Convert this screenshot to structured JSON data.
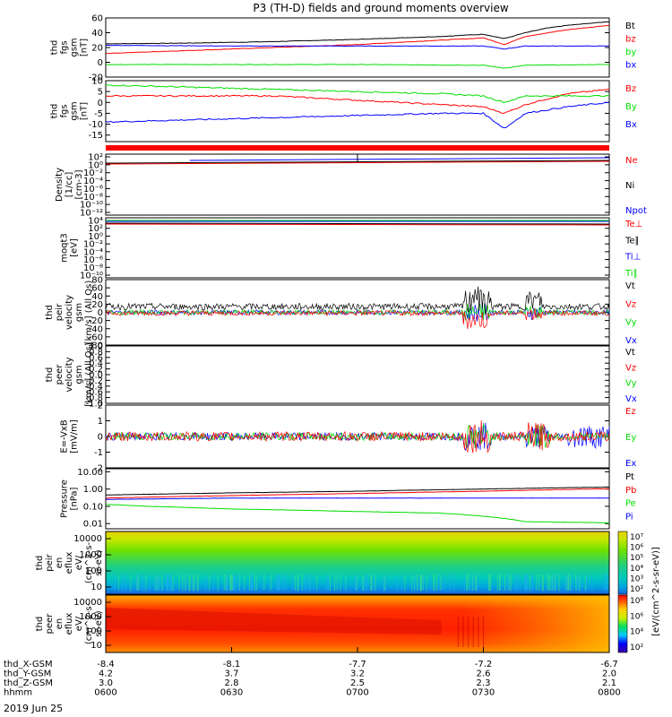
{
  "title": "P3 (TH-D) fields and ground moments overview",
  "date_label": "2019 Jun 25",
  "colors": {
    "black": "#000000",
    "red": "#ff0000",
    "green": "#00dd00",
    "blue": "#0000ff"
  },
  "chart_data": [
    {
      "id": "fgs",
      "type": "line",
      "ylabel": [
        "thd",
        "fgs",
        "gsm",
        "[nT]"
      ],
      "ylim": [
        -20,
        60
      ],
      "ticks": [
        "60",
        "40",
        "20",
        "0",
        "-20"
      ],
      "tick_values": [
        60,
        40,
        20,
        0,
        -20
      ],
      "series": [
        {
          "name": "Bt",
          "color": "black",
          "x": [
            0,
            20,
            40,
            60,
            80,
            90,
            95,
            100,
            105,
            110,
            120
          ],
          "y": [
            25,
            26,
            28,
            31,
            35,
            38,
            32,
            40,
            46,
            50,
            55
          ]
        },
        {
          "name": "bz",
          "color": "red",
          "x": [
            0,
            20,
            40,
            60,
            80,
            90,
            95,
            100,
            110,
            120
          ],
          "y": [
            12,
            16,
            20,
            24,
            30,
            33,
            24,
            35,
            44,
            50
          ]
        },
        {
          "name": "by",
          "color": "green",
          "x": [
            0,
            30,
            60,
            90,
            95,
            100,
            120
          ],
          "y": [
            -3,
            -3,
            -3,
            -4,
            -8,
            -4,
            -3
          ]
        },
        {
          "name": "bx",
          "color": "blue",
          "x": [
            0,
            30,
            60,
            90,
            95,
            100,
            120
          ],
          "y": [
            23,
            22,
            22,
            22,
            18,
            22,
            22
          ]
        }
      ]
    },
    {
      "id": "gse",
      "type": "line",
      "ylabel": [
        "thd",
        "fgs",
        "gsm",
        "[nT]"
      ],
      "ylim": [
        -18,
        10
      ],
      "ticks": [
        "10",
        "5",
        "0",
        "-5",
        "-10",
        "-15"
      ],
      "tick_values": [
        10,
        5,
        0,
        -5,
        -10,
        -15
      ],
      "series": [
        {
          "name": "Bz",
          "color": "red",
          "x": [
            0,
            20,
            40,
            60,
            80,
            90,
            95,
            100,
            110,
            120
          ],
          "y": [
            3,
            3,
            3,
            1,
            -1,
            -2,
            -5,
            -1,
            4,
            6
          ]
        },
        {
          "name": "By",
          "color": "green",
          "x": [
            0,
            20,
            40,
            60,
            80,
            90,
            95,
            100,
            120
          ],
          "y": [
            8,
            7,
            6,
            5,
            4,
            3,
            0,
            3,
            3
          ]
        },
        {
          "name": "Bx",
          "color": "blue",
          "x": [
            0,
            20,
            40,
            60,
            80,
            90,
            95,
            100,
            110,
            120
          ],
          "y": [
            -9,
            -8,
            -7,
            -6,
            -5,
            -5,
            -12,
            -5,
            -2,
            0
          ]
        }
      ]
    },
    {
      "id": "density",
      "type": "line",
      "ylabel": [
        "Density",
        "[1/cc]",
        "[cm-3]"
      ],
      "ticks": [
        "10²",
        "10⁰",
        "10⁻²",
        "10⁻⁴",
        "10⁻⁶",
        "10⁻⁸",
        "10⁻¹⁰",
        "10⁻¹²"
      ],
      "legend": [
        "Ne",
        "Ni",
        "Npot"
      ],
      "legend_colors": [
        "red",
        "black",
        "blue"
      ]
    },
    {
      "id": "temp",
      "type": "line",
      "ylabel": [
        "moqt3",
        "[eV]"
      ],
      "ticks": [
        "10⁴",
        "10²",
        "10⁰",
        "10⁻²",
        "10⁻⁴",
        "10⁻⁶",
        "10⁻⁸",
        "10⁻¹⁰"
      ],
      "legend": [
        "Te⊥",
        "Te∥",
        "Ti⊥",
        "Ti∥"
      ],
      "legend_colors": [
        "red",
        "black",
        "blue",
        "green"
      ]
    },
    {
      "id": "ivel",
      "type": "line",
      "ylabel": [
        "thd",
        "peir",
        "velocity",
        "gsm",
        "[km/s] (All Qs)"
      ],
      "ylim": [
        -80,
        80
      ],
      "ticks": [
        "80",
        "60",
        "40",
        "20",
        "0",
        "-20",
        "-40",
        "-60",
        "-80"
      ],
      "tick_values": [
        80,
        60,
        40,
        20,
        0,
        -20,
        -40,
        -60,
        -80
      ],
      "legend": [
        "Vt",
        "Vz",
        "Vy",
        "Vx"
      ],
      "legend_colors": [
        "black",
        "red",
        "green",
        "blue"
      ]
    },
    {
      "id": "evel",
      "type": "line",
      "ylabel": [
        "thd",
        "peer",
        "velocity",
        "gsm",
        "[km/s] (All Qs)"
      ],
      "ylim": [
        -1,
        1
      ],
      "ticks": [
        "1.0",
        "0.8",
        "0.6",
        "0.4",
        "0.2",
        "0.0",
        "-0.2",
        "-0.4",
        "-0.6",
        "-0.8",
        "-1.0"
      ],
      "tick_values": [
        1,
        0.8,
        0.6,
        0.4,
        0.2,
        0,
        -0.2,
        -0.4,
        -0.6,
        -0.8,
        -1
      ],
      "legend": [
        "Vt",
        "Vz",
        "Vy",
        "Vx"
      ],
      "legend_colors": [
        "black",
        "red",
        "green",
        "blue"
      ]
    },
    {
      "id": "efield",
      "type": "line",
      "ylabel": [
        "E=-VxB",
        "[mV/m]"
      ],
      "ylim": [
        -2,
        2
      ],
      "ticks": [
        "2",
        "1",
        "0",
        "-1",
        "-2"
      ],
      "tick_values": [
        2,
        1,
        0,
        -1,
        -2
      ],
      "legend": [
        "Ez",
        "Ey",
        "Ex"
      ],
      "legend_colors": [
        "red",
        "green",
        "blue"
      ]
    },
    {
      "id": "pressure",
      "type": "line",
      "ylabel": [
        "Pressure",
        "[nPa]"
      ],
      "ticks": [
        "10.00",
        "1.00",
        "0.10",
        "0.01"
      ],
      "tick_values": [
        10,
        1,
        0.1,
        0.01
      ],
      "series": [
        {
          "name": "Pt",
          "color": "black",
          "x": [
            0,
            30,
            60,
            90,
            120
          ],
          "y": [
            0.45,
            0.6,
            0.75,
            1.0,
            1.3
          ]
        },
        {
          "name": "Pb",
          "color": "red",
          "x": [
            0,
            30,
            60,
            90,
            120
          ],
          "y": [
            0.3,
            0.42,
            0.55,
            0.75,
            1.05
          ]
        },
        {
          "name": "Pe",
          "color": "green",
          "x": [
            0,
            10,
            30,
            60,
            80,
            100,
            120
          ],
          "y": [
            0.13,
            0.1,
            0.07,
            0.05,
            0.04,
            0.013,
            0.011
          ]
        },
        {
          "name": "Pi",
          "color": "blue",
          "x": [
            0,
            30,
            60,
            90,
            120
          ],
          "y": [
            0.25,
            0.3,
            0.3,
            0.3,
            0.3
          ]
        }
      ]
    },
    {
      "id": "ispec",
      "type": "heatmap",
      "ylabel": [
        "thd",
        "peir",
        "en",
        "eflux",
        "eV/",
        "(cm^2-s-",
        "sr-eV)"
      ],
      "yticks": [
        "10000",
        "1000",
        "100",
        "10"
      ],
      "colorbar_ticks": [
        "10⁷",
        "10⁶",
        "10⁵",
        "10⁴",
        "10³",
        "10²"
      ],
      "colorbar_label": "[eV/(cm^2-s-sr-eV) (All Qs)]"
    },
    {
      "id": "espec",
      "type": "heatmap",
      "ylabel": [
        "thd",
        "peer",
        "en",
        "eflux",
        "eV/",
        "(cm^2-s-",
        "sr-eV)"
      ],
      "yticks": [
        "10000",
        "1000",
        "100",
        "10"
      ],
      "colorbar_ticks": [
        "10⁸",
        "10⁶",
        "10⁴",
        "10²"
      ],
      "colorbar_label": "[eV/(cm^2-s-sr-eV)]"
    }
  ],
  "xaxis": {
    "rows": [
      {
        "label": "thd_X-GSM",
        "values": [
          "-8.4",
          "-8.1",
          "-7.7",
          "-7.2",
          "-6.7"
        ]
      },
      {
        "label": "thd_Y-GSM",
        "values": [
          "4.2",
          "3.7",
          "3.2",
          "2.6",
          "2.0"
        ]
      },
      {
        "label": "thd_Z-GSM",
        "values": [
          "3.0",
          "2.8",
          "2.5",
          "2.3",
          "2.1"
        ]
      },
      {
        "label": "hhmm",
        "values": [
          "0600",
          "0630",
          "0700",
          "0730",
          "0800"
        ]
      }
    ]
  }
}
